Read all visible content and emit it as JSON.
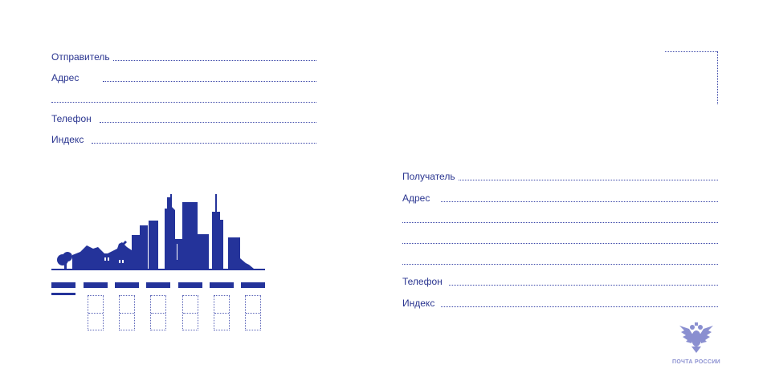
{
  "sender": {
    "fields": [
      {
        "label": "Отправитель"
      },
      {
        "label": "Адрес"
      },
      {
        "label": ""
      },
      {
        "label": "Телефон"
      },
      {
        "label": "Индекс"
      }
    ]
  },
  "recipient": {
    "fields": [
      {
        "label": "Получатель"
      },
      {
        "label": "Адрес"
      },
      {
        "label": ""
      },
      {
        "label": ""
      },
      {
        "label": ""
      },
      {
        "label": "Телефон"
      },
      {
        "label": "Индекс"
      }
    ]
  },
  "logo": {
    "text": "ПОЧТА РОССИИ",
    "icon": "double-headed-eagle-icon"
  },
  "colors": {
    "primary": "#24339a",
    "logo": "#8a8fd0"
  }
}
